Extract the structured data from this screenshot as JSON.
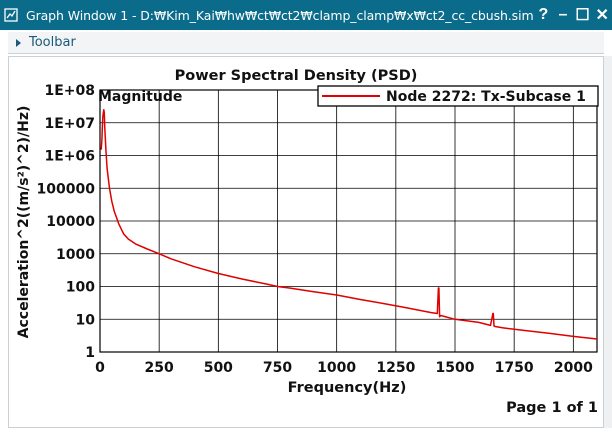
{
  "window": {
    "title": "Graph Window 1 - D:₩Kim_Kai₩hw₩ct₩ct2₩clamp_clamp₩x₩ct2_cc_cbush.sim",
    "help_glyph": "?",
    "minimize_glyph": "–",
    "maximize_glyph": "☐",
    "close_glyph": "✕"
  },
  "toolbar": {
    "label": "Toolbar"
  },
  "graph": {
    "magnitude_label": "Magnitude",
    "page_label": "Page 1 of 1"
  },
  "colors": {
    "titlebar": "#0a6b8b",
    "series": "#e00000",
    "grid": "#000000"
  },
  "chart_data": {
    "type": "line",
    "title": "Power Spectral Density (PSD)",
    "xlabel": "Frequency(Hz)",
    "ylabel": "Acceleration^2((m/s²)^2)/Hz)",
    "y_scale": "log",
    "xlim": [
      0,
      2100
    ],
    "ylim": [
      1,
      100000000
    ],
    "x_ticks": [
      0,
      250,
      500,
      750,
      1000,
      1250,
      1500,
      1750,
      2000
    ],
    "x_tick_labels": [
      "0",
      "250",
      "500",
      "750",
      "1000",
      "1250",
      "1500",
      "1750",
      "2000"
    ],
    "y_ticks": [
      1,
      10,
      100,
      1000,
      10000,
      100000,
      1000000,
      10000000,
      100000000
    ],
    "y_tick_labels": [
      "1",
      "10",
      "100",
      "1000",
      "10000",
      "100000",
      "1E+06",
      "1E+07",
      "1E+08"
    ],
    "grid": true,
    "legend_position": "top-right",
    "series": [
      {
        "name": "Node 2272: Tx-Subcase 1",
        "color": "#e00000",
        "x": [
          5,
          8,
          10,
          12,
          14,
          16,
          18,
          20,
          22,
          25,
          30,
          40,
          50,
          60,
          80,
          100,
          120,
          150,
          200,
          250,
          300,
          400,
          500,
          600,
          700,
          750,
          800,
          900,
          1000,
          1100,
          1200,
          1300,
          1400,
          1425,
          1430,
          1432,
          1435,
          1440,
          1500,
          1600,
          1650,
          1660,
          1662,
          1665,
          1670,
          1700,
          1800,
          1900,
          2000,
          2100
        ],
        "y": [
          1500000,
          3000000,
          8000000,
          15000000,
          20000000,
          25000000,
          20000000,
          8000000,
          4000000,
          1500000,
          400000,
          100000,
          40000,
          20000,
          8000,
          4000,
          2800,
          2000,
          1400,
          1000,
          700,
          400,
          250,
          170,
          120,
          100,
          90,
          70,
          55,
          40,
          30,
          22,
          16,
          15,
          90,
          90,
          12,
          13,
          10,
          8,
          6.5,
          15,
          15,
          6.2,
          6,
          5.5,
          4.5,
          3.7,
          3,
          2.5
        ]
      }
    ]
  }
}
